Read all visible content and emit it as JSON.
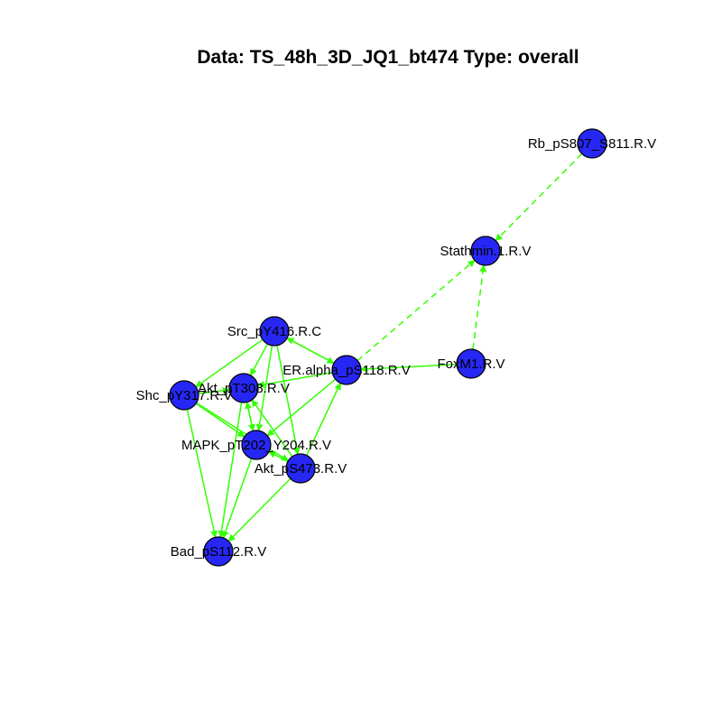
{
  "title": "Data: TS_48h_3D_JQ1_bt474 Type: overall",
  "colors": {
    "node_fill": "#2727f5",
    "node_stroke": "#000000",
    "edge": "#33ff00",
    "background": "#ffffff"
  },
  "nodes": [
    {
      "id": "rb",
      "label": "Rb_pS807_S811.R.V"
    },
    {
      "id": "stathmin",
      "label": "Stathmin.1.R.V"
    },
    {
      "id": "src",
      "label": "Src_pY416.R.C"
    },
    {
      "id": "er",
      "label": "ER.alpha_pS118.R.V"
    },
    {
      "id": "foxm1",
      "label": "FoxM1.R.V"
    },
    {
      "id": "akt308",
      "label": "Akt_pT308.R.V"
    },
    {
      "id": "shc",
      "label": "Shc_pY317.R.V"
    },
    {
      "id": "mapk",
      "label": "MAPK_pT202_Y204.R.V"
    },
    {
      "id": "akt473",
      "label": "Akt_pS473.R.V"
    },
    {
      "id": "bad",
      "label": "Bad_pS112.R.V"
    }
  ],
  "edges": [
    {
      "from": "rb",
      "to": "stathmin",
      "style": "dashed"
    },
    {
      "from": "er",
      "to": "stathmin",
      "style": "dashed"
    },
    {
      "from": "foxm1",
      "to": "stathmin",
      "style": "dashed"
    },
    {
      "from": "foxm1",
      "to": "er",
      "style": "solid"
    },
    {
      "from": "er",
      "to": "src",
      "style": "solid"
    },
    {
      "from": "src",
      "to": "er",
      "style": "solid"
    },
    {
      "from": "src",
      "to": "shc",
      "style": "solid"
    },
    {
      "from": "src",
      "to": "akt308",
      "style": "solid"
    },
    {
      "from": "src",
      "to": "mapk",
      "style": "solid"
    },
    {
      "from": "src",
      "to": "akt473",
      "style": "solid"
    },
    {
      "from": "er",
      "to": "akt308",
      "style": "solid"
    },
    {
      "from": "er",
      "to": "mapk",
      "style": "solid"
    },
    {
      "from": "shc",
      "to": "akt308",
      "style": "solid"
    },
    {
      "from": "shc",
      "to": "mapk",
      "style": "solid"
    },
    {
      "from": "shc",
      "to": "akt473",
      "style": "solid"
    },
    {
      "from": "akt308",
      "to": "mapk",
      "style": "solid"
    },
    {
      "from": "akt308",
      "to": "bad",
      "style": "solid"
    },
    {
      "from": "mapk",
      "to": "akt308",
      "style": "solid"
    },
    {
      "from": "mapk",
      "to": "bad",
      "style": "solid"
    },
    {
      "from": "akt473",
      "to": "er",
      "style": "solid"
    },
    {
      "from": "akt473",
      "to": "akt308",
      "style": "solid"
    },
    {
      "from": "akt473",
      "to": "mapk",
      "style": "solid"
    },
    {
      "from": "akt473",
      "to": "bad",
      "style": "solid"
    },
    {
      "from": "shc",
      "to": "bad",
      "style": "solid"
    }
  ]
}
